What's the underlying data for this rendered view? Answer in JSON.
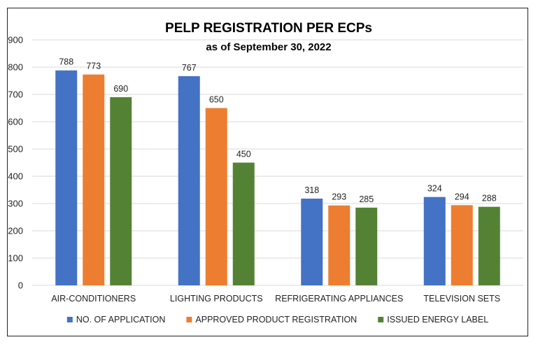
{
  "chart_data": {
    "type": "bar",
    "title": "PELP REGISTRATION PER ECPs",
    "subtitle": "as of September 30, 2022",
    "categories": [
      "AIR-CONDITIONERS",
      "LIGHTING PRODUCTS",
      "REFRIGERATING APPLIANCES",
      "TELEVISION SETS"
    ],
    "series": [
      {
        "name": "NO. OF APPLICATION",
        "color": "#4472C4",
        "values": [
          788,
          767,
          318,
          324
        ]
      },
      {
        "name": "APPROVED PRODUCT REGISTRATION",
        "color": "#ED7D31",
        "values": [
          773,
          650,
          293,
          294
        ]
      },
      {
        "name": "ISSUED ENERGY LABEL",
        "color": "#548235",
        "values": [
          690,
          450,
          285,
          288
        ]
      }
    ],
    "ylim": [
      0,
      900
    ],
    "yticks": [
      0,
      100,
      200,
      300,
      400,
      500,
      600,
      700,
      800,
      900
    ],
    "grid": true,
    "legend_position": "bottom",
    "data_labels": true
  }
}
